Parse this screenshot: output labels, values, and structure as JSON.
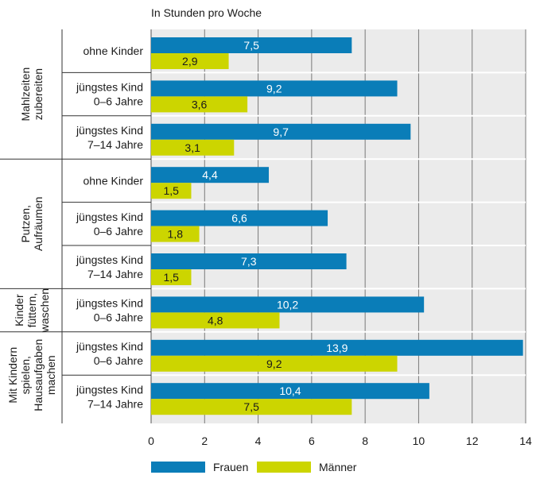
{
  "chart_data": {
    "type": "bar",
    "orientation": "horizontal",
    "subtitle": "In Stunden pro Woche",
    "xlim": [
      0,
      14
    ],
    "xticks": [
      0,
      2,
      4,
      6,
      8,
      10,
      12,
      14
    ],
    "grid": true,
    "legend_position": "bottom",
    "groups": [
      {
        "label": "Mahlzeiten zubereiten",
        "label_lines": [
          "Mahlzeiten",
          "zubereiten"
        ],
        "categories": [
          0,
          1,
          2
        ]
      },
      {
        "label": "Putzen, Aufräumen",
        "label_lines": [
          "Putzen,",
          "Aufräumen"
        ],
        "categories": [
          3,
          4,
          5
        ]
      },
      {
        "label": "Kinder füttern, waschen",
        "label_lines": [
          "Kinder",
          "füttern,",
          "waschen"
        ],
        "categories": [
          6
        ]
      },
      {
        "label": "Mit Kindern spielen, Hausaufgaben machen",
        "label_lines": [
          "Mit Kindern",
          "spielen,",
          "Hausaufgaben",
          "machen"
        ],
        "categories": [
          7,
          8
        ]
      }
    ],
    "categories": [
      [
        "ohne Kinder"
      ],
      [
        "jüngstes Kind",
        "0–6 Jahre"
      ],
      [
        "jüngstes Kind",
        "7–14 Jahre"
      ],
      [
        "ohne Kinder"
      ],
      [
        "jüngstes Kind",
        "0–6 Jahre"
      ],
      [
        "jüngstes Kind",
        "7–14 Jahre"
      ],
      [
        "jüngstes Kind",
        "0–6 Jahre"
      ],
      [
        "jüngstes Kind",
        "0–6 Jahre"
      ],
      [
        "jüngstes Kind",
        "7–14 Jahre"
      ]
    ],
    "series": [
      {
        "name": "Frauen",
        "color": "#0a7db8",
        "values": [
          7.5,
          9.2,
          9.7,
          4.4,
          6.6,
          7.3,
          10.2,
          13.9,
          10.4
        ],
        "labels": [
          "7,5",
          "9,2",
          "9,7",
          "4,4",
          "6,6",
          "7,3",
          "10,2",
          "13,9",
          "10,4"
        ]
      },
      {
        "name": "Männer",
        "color": "#ccd500",
        "values": [
          2.9,
          3.6,
          3.1,
          1.5,
          1.8,
          1.5,
          4.8,
          9.2,
          7.5
        ],
        "labels": [
          "2,9",
          "3,6",
          "3,1",
          "1,5",
          "1,8",
          "1,5",
          "4,8",
          "9,2",
          "7,5"
        ]
      }
    ]
  }
}
